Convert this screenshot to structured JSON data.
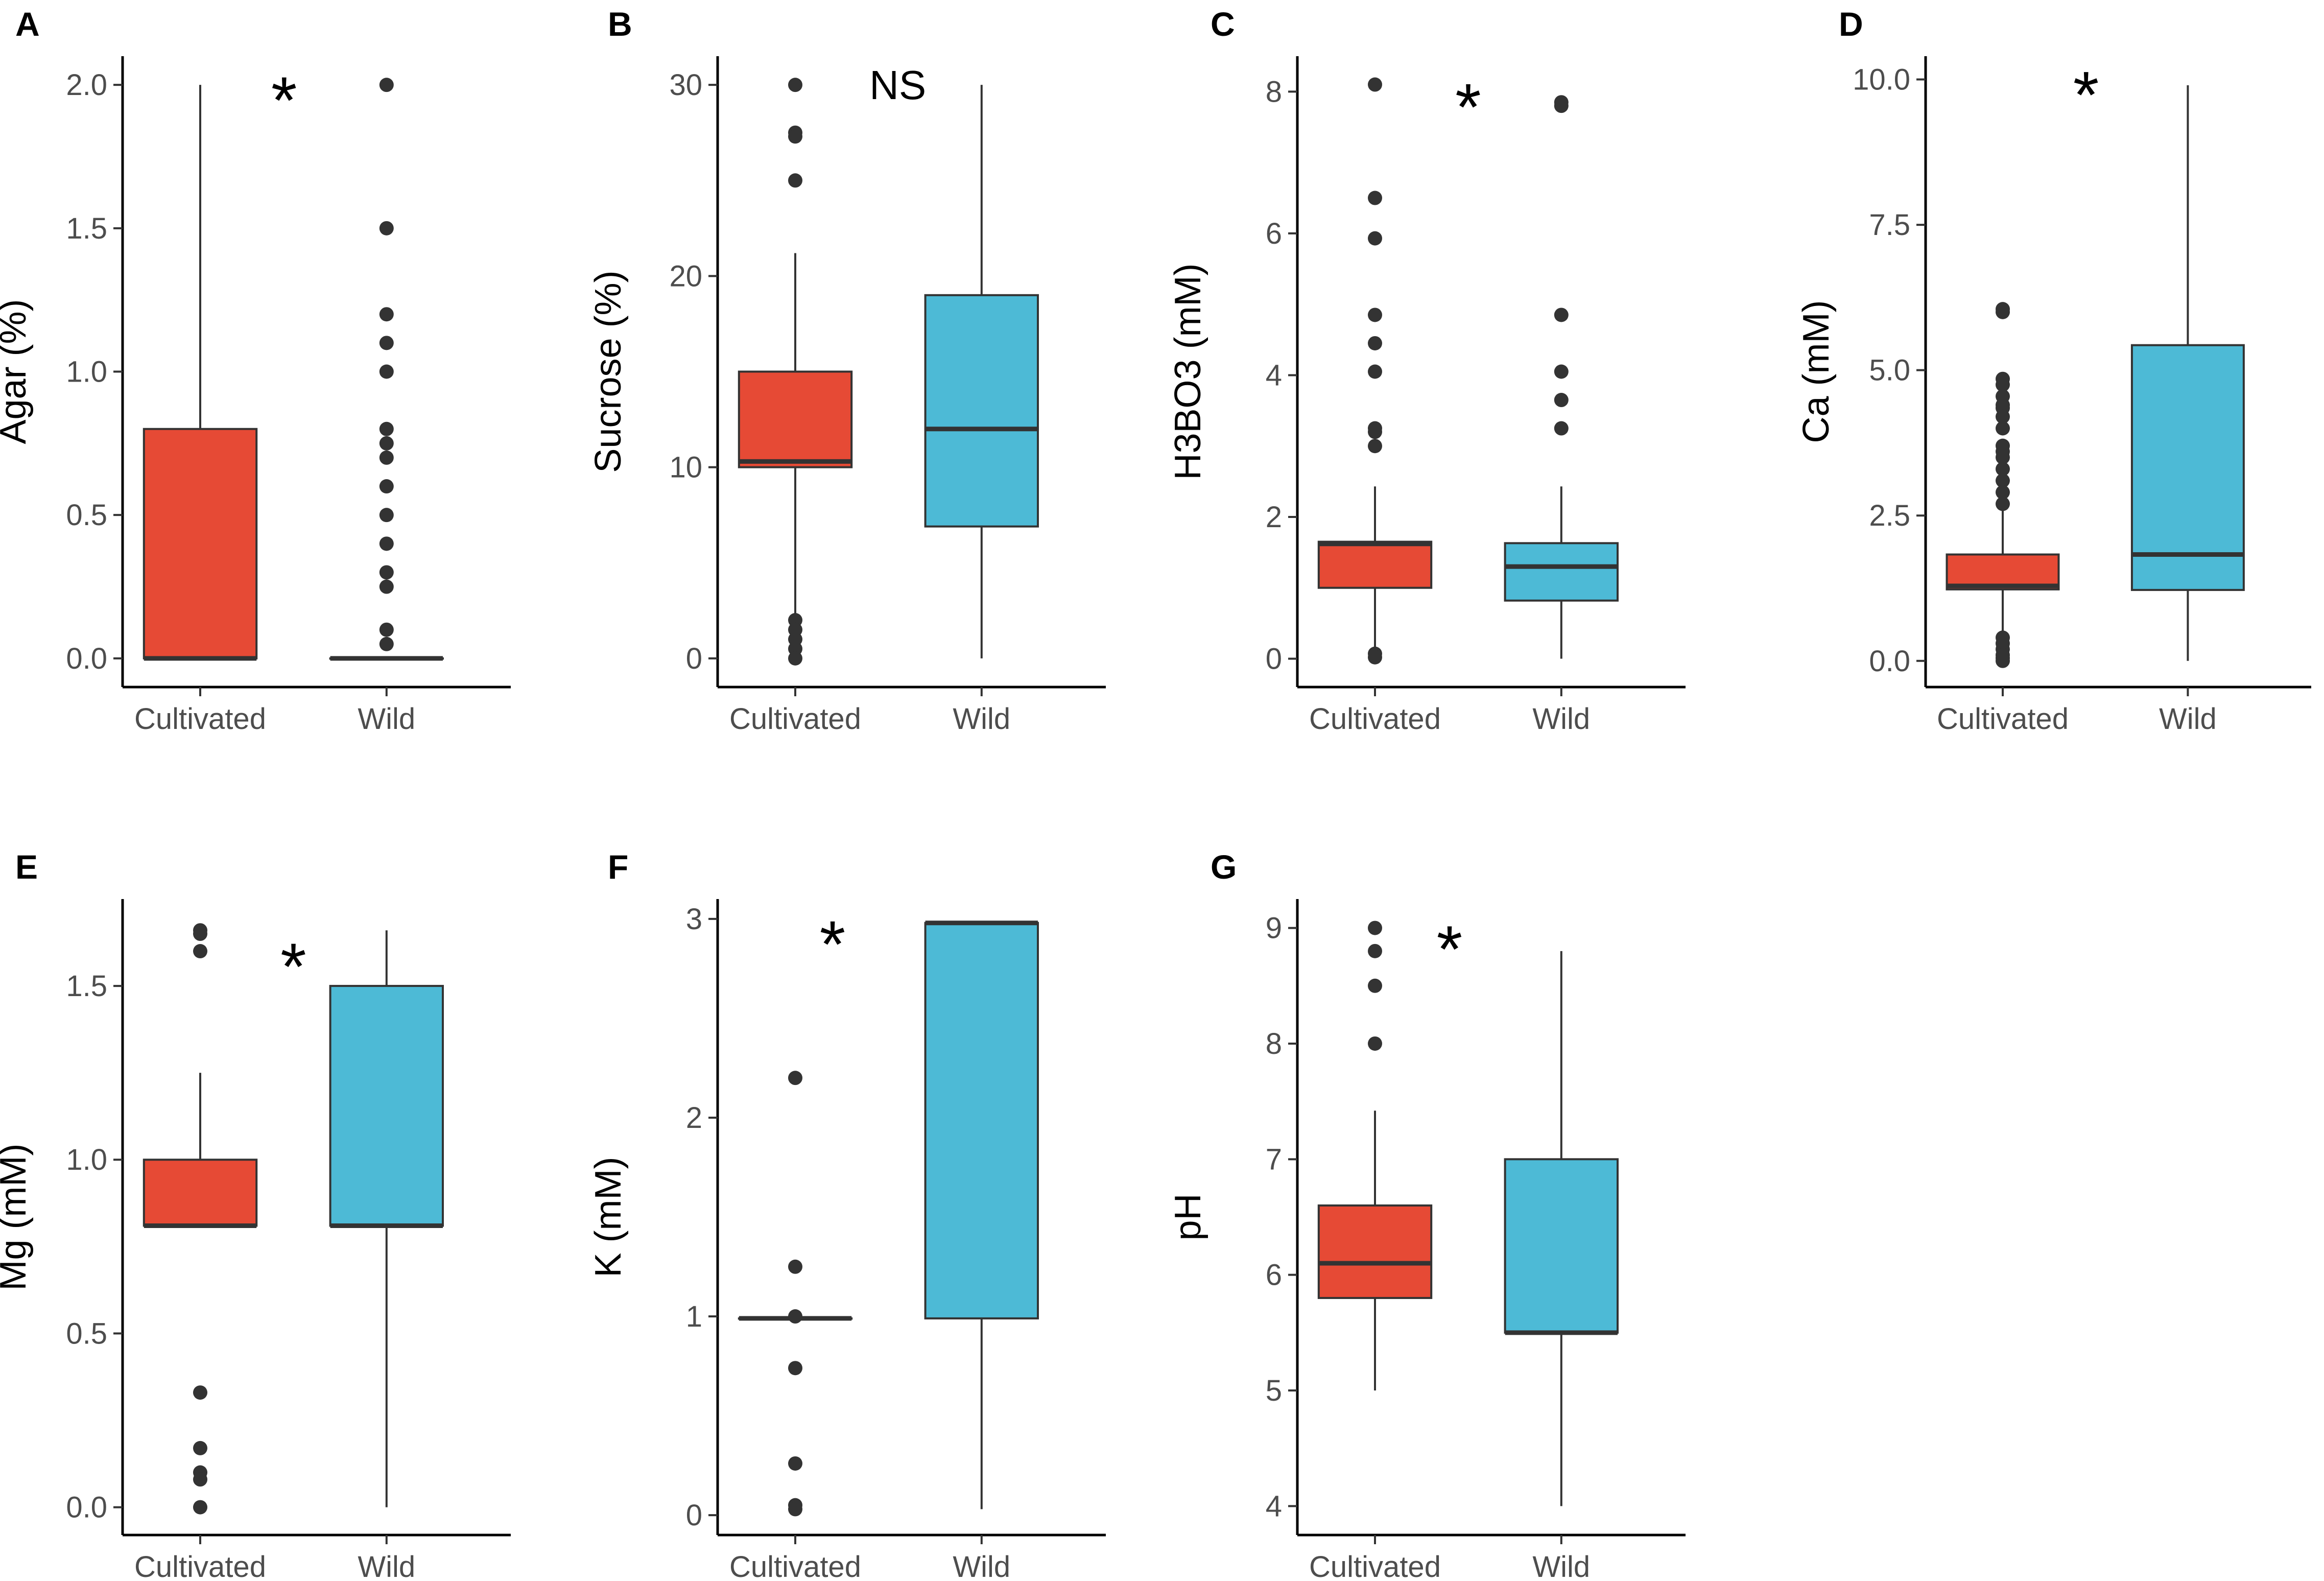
{
  "chart_data": [
    {
      "panel": "A",
      "type": "box",
      "title": "",
      "xlabel": "",
      "ylabel": "Agar (%)",
      "categories": [
        "Cultivated",
        "Wild"
      ],
      "ylim": [
        -0.1,
        2.1
      ],
      "yticks": [
        0.0,
        0.5,
        1.0,
        1.5,
        2.0
      ],
      "ytick_labels": [
        "0.0",
        "0.5",
        "1.0",
        "1.5",
        "2.0"
      ],
      "boxes": [
        {
          "group": "Cultivated",
          "color": "#E64A35",
          "q1": 0.0,
          "median": 0.0,
          "q3": 0.8,
          "whisker_low": 0.0,
          "whisker_high": 2.0,
          "outliers": []
        },
        {
          "group": "Wild",
          "color": "#4DBAD6",
          "q1": 0.0,
          "median": 0.0,
          "q3": 0.0,
          "whisker_low": 0.0,
          "whisker_high": 0.0,
          "outliers": [
            2.0,
            1.5,
            1.2,
            1.1,
            1.0,
            0.8,
            0.75,
            0.7,
            0.6,
            0.5,
            0.4,
            0.3,
            0.25,
            0.1,
            0.05
          ]
        }
      ],
      "annotation": "*",
      "annotation_at": {
        "x": 1.45,
        "y": 2.0
      }
    },
    {
      "panel": "B",
      "type": "box",
      "title": "",
      "xlabel": "",
      "ylabel": "Sucrose (%)",
      "categories": [
        "Cultivated",
        "Wild"
      ],
      "ylim": [
        -1.5,
        31.5
      ],
      "yticks": [
        0,
        10,
        20,
        30
      ],
      "ytick_labels": [
        "0",
        "10",
        "20",
        "30"
      ],
      "boxes": [
        {
          "group": "Cultivated",
          "color": "#E64A35",
          "q1": 10.0,
          "median": 10.3,
          "q3": 15.0,
          "whisker_low": 2.2,
          "whisker_high": 21.2,
          "outliers": [
            30.0,
            27.5,
            27.3,
            25.0,
            2.0,
            1.5,
            1.0,
            0.5,
            0.0
          ]
        },
        {
          "group": "Wild",
          "color": "#4DBAD6",
          "q1": 6.9,
          "median": 12.0,
          "q3": 19.0,
          "whisker_low": 0.0,
          "whisker_high": 30.0,
          "outliers": []
        }
      ],
      "annotation": "NS",
      "annotation_at": {
        "x": 1.55,
        "y": 30.0
      }
    },
    {
      "panel": "C",
      "type": "box",
      "title": "",
      "xlabel": "",
      "ylabel": "H3BO3 (mM)",
      "categories": [
        "Cultivated",
        "Wild"
      ],
      "ylim": [
        -0.4,
        8.5
      ],
      "yticks": [
        0,
        2,
        4,
        6,
        8
      ],
      "ytick_labels": [
        "0",
        "2",
        "4",
        "6",
        "8"
      ],
      "boxes": [
        {
          "group": "Cultivated",
          "color": "#E64A35",
          "q1": 1.0,
          "median": 1.62,
          "q3": 1.65,
          "whisker_low": 0.0,
          "whisker_high": 2.43,
          "outliers": [
            8.1,
            6.5,
            5.93,
            4.85,
            4.45,
            4.05,
            3.25,
            3.2,
            3.0,
            0.07,
            0.02
          ]
        },
        {
          "group": "Wild",
          "color": "#4DBAD6",
          "q1": 0.82,
          "median": 1.3,
          "q3": 1.63,
          "whisker_low": 0.0,
          "whisker_high": 2.43,
          "outliers": [
            7.85,
            7.8,
            4.85,
            4.05,
            3.65,
            3.25
          ]
        }
      ],
      "annotation": "*",
      "annotation_at": {
        "x": 1.5,
        "y": 8.0
      }
    },
    {
      "panel": "D",
      "type": "box",
      "title": "",
      "xlabel": "",
      "ylabel": "Ca (mM)",
      "categories": [
        "Cultivated",
        "Wild"
      ],
      "ylim": [
        -0.45,
        10.4
      ],
      "yticks": [
        0.0,
        2.5,
        5.0,
        7.5,
        10.0
      ],
      "ytick_labels": [
        "0.0",
        "2.5",
        "5.0",
        "7.5",
        "10.0"
      ],
      "boxes": [
        {
          "group": "Cultivated",
          "color": "#E64A35",
          "q1": 1.23,
          "median": 1.29,
          "q3": 1.83,
          "whisker_low": 0.5,
          "whisker_high": 2.65,
          "outliers": [
            6.05,
            6.0,
            4.85,
            4.75,
            4.55,
            4.4,
            4.35,
            4.2,
            4.0,
            3.7,
            3.6,
            3.5,
            3.3,
            3.1,
            2.9,
            2.7,
            0.4,
            0.3,
            0.2,
            0.1,
            0.05,
            0.0
          ]
        },
        {
          "group": "Wild",
          "color": "#4DBAD6",
          "q1": 1.22,
          "median": 1.83,
          "q3": 5.43,
          "whisker_low": 0.0,
          "whisker_high": 9.9,
          "outliers": []
        }
      ],
      "annotation": "*",
      "annotation_at": {
        "x": 1.45,
        "y": 10.0
      }
    },
    {
      "panel": "E",
      "type": "box",
      "title": "",
      "xlabel": "",
      "ylabel": "Mg (mM)",
      "categories": [
        "Cultivated",
        "Wild"
      ],
      "ylim": [
        -0.08,
        1.75
      ],
      "yticks": [
        0.0,
        0.5,
        1.0,
        1.5
      ],
      "ytick_labels": [
        "0.0",
        "0.5",
        "1.0",
        "1.5"
      ],
      "boxes": [
        {
          "group": "Cultivated",
          "color": "#E64A35",
          "q1": 0.81,
          "median": 0.81,
          "q3": 1.0,
          "whisker_low": 0.81,
          "whisker_high": 1.25,
          "outliers": [
            1.66,
            1.65,
            1.6,
            0.33,
            0.17,
            0.1,
            0.08,
            0.0
          ]
        },
        {
          "group": "Wild",
          "color": "#4DBAD6",
          "q1": 0.81,
          "median": 0.81,
          "q3": 1.5,
          "whisker_low": 0.0,
          "whisker_high": 1.66,
          "outliers": []
        }
      ],
      "annotation": "*",
      "annotation_at": {
        "x": 1.5,
        "y": 1.6
      }
    },
    {
      "panel": "F",
      "type": "box",
      "title": "",
      "xlabel": "",
      "ylabel": "K (mM)",
      "categories": [
        "Cultivated",
        "Wild"
      ],
      "ylim": [
        -0.1,
        3.1
      ],
      "yticks": [
        0,
        1,
        2,
        3
      ],
      "ytick_labels": [
        "0",
        "1",
        "2",
        "3"
      ],
      "boxes": [
        {
          "group": "Cultivated",
          "color": "#E64A35",
          "q1": 0.99,
          "median": 0.99,
          "q3": 0.99,
          "whisker_low": 0.99,
          "whisker_high": 0.99,
          "outliers": [
            2.2,
            1.25,
            1.0,
            0.74,
            0.26,
            0.05,
            0.03
          ]
        },
        {
          "group": "Wild",
          "color": "#4DBAD6",
          "q1": 0.99,
          "median": 2.98,
          "q3": 2.98,
          "whisker_low": 0.03,
          "whisker_high": 2.98,
          "outliers": []
        }
      ],
      "annotation": "*",
      "annotation_at": {
        "x": 1.2,
        "y": 2.95
      }
    },
    {
      "panel": "G",
      "type": "box",
      "title": "",
      "xlabel": "",
      "ylabel": "pH",
      "categories": [
        "Cultivated",
        "Wild"
      ],
      "ylim": [
        3.75,
        9.25
      ],
      "yticks": [
        4,
        5,
        6,
        7,
        8,
        9
      ],
      "ytick_labels": [
        "4",
        "5",
        "6",
        "7",
        "8",
        "9"
      ],
      "boxes": [
        {
          "group": "Cultivated",
          "color": "#E64A35",
          "q1": 5.8,
          "median": 6.1,
          "q3": 6.6,
          "whisker_low": 5.0,
          "whisker_high": 7.42,
          "outliers": [
            9.0,
            8.8,
            8.5,
            8.0
          ]
        },
        {
          "group": "Wild",
          "color": "#4DBAD6",
          "q1": 5.5,
          "median": 5.5,
          "q3": 7.0,
          "whisker_low": 4.0,
          "whisker_high": 8.8,
          "outliers": []
        }
      ],
      "annotation": "*",
      "annotation_at": {
        "x": 1.4,
        "y": 8.95
      }
    }
  ]
}
